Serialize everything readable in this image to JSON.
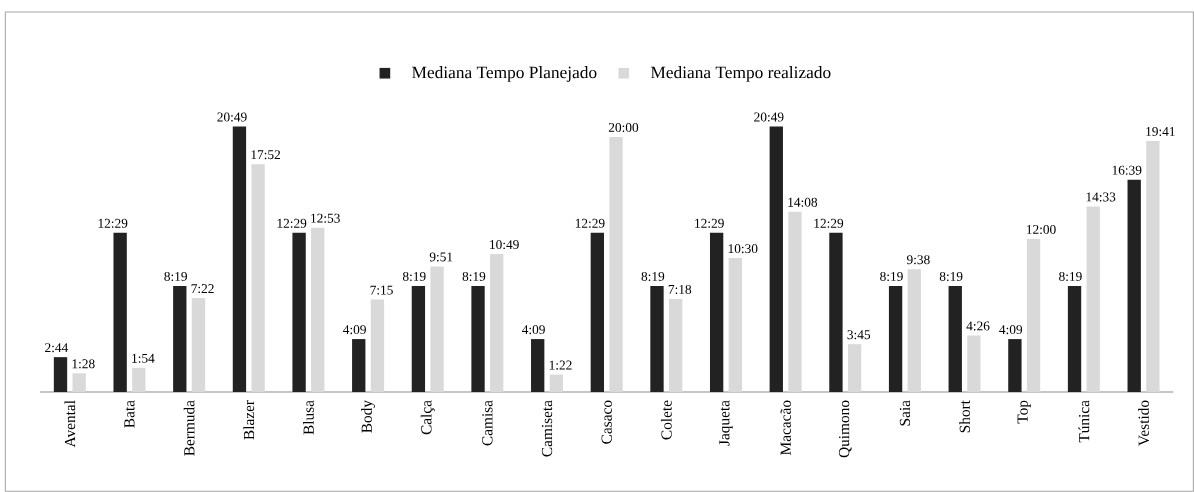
{
  "chart_data": {
    "type": "bar",
    "categories": [
      "Avental",
      "Bata",
      "Bermuda",
      "Blazer",
      "Blusa",
      "Body",
      "Calça",
      "Camisa",
      "Camiseta",
      "Casaco",
      "Colete",
      "Jaqueta",
      "Macacão",
      "Quimono",
      "Saia",
      "Short",
      "Top",
      "Túnica",
      "Vestido"
    ],
    "series": [
      {
        "name": "Mediana Tempo Planejado",
        "color": "#222222",
        "values": [
          2.733,
          12.483,
          8.317,
          20.817,
          12.483,
          4.15,
          8.317,
          8.317,
          4.15,
          12.483,
          8.317,
          12.483,
          20.817,
          12.483,
          8.317,
          8.317,
          4.15,
          8.317,
          16.65
        ],
        "value_labels": [
          "2:44",
          "12:29",
          "8:19",
          "20:49",
          "12:29",
          "4:09",
          "8:19",
          "8:19",
          "4:09",
          "12:29",
          "8:19",
          "12:29",
          "20:49",
          "12:29",
          "8:19",
          "8:19",
          "4:09",
          "8:19",
          "16:39"
        ]
      },
      {
        "name": "Mediana Tempo realizado",
        "color": "#d9d9d9",
        "values": [
          1.467,
          1.9,
          7.367,
          17.867,
          12.883,
          7.25,
          9.85,
          10.817,
          1.367,
          20.0,
          7.3,
          10.5,
          14.133,
          3.75,
          9.633,
          4.433,
          12.0,
          14.55,
          19.683
        ],
        "value_labels": [
          "1:28",
          "1:54",
          "7:22",
          "17:52",
          "12:53",
          "7:15",
          "9:51",
          "10:49",
          "1:22",
          "20:00",
          "7:18",
          "10:30",
          "14:08",
          "3:45",
          "9:38",
          "4:26",
          "12:00",
          "14:33",
          "19:41"
        ]
      }
    ],
    "legend": "top",
    "grid": false
  }
}
